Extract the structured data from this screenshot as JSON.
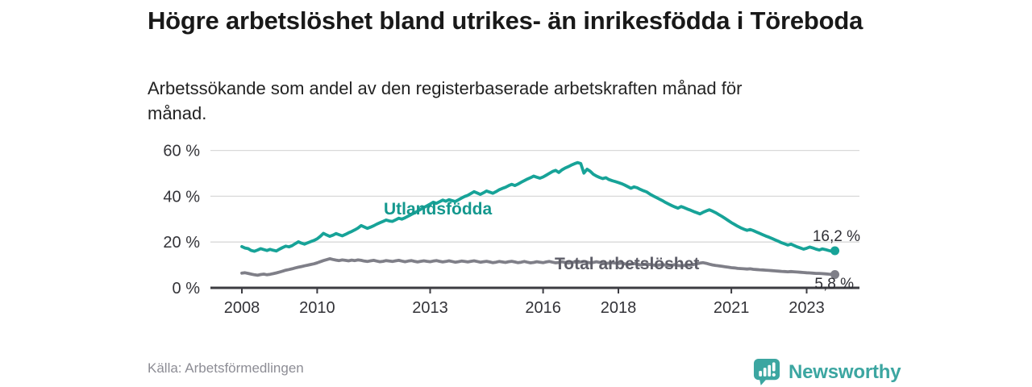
{
  "header": {
    "title": "Högre arbetslöshet bland utrikes- än inrikesfödda i Töreboda",
    "subtitle": "Arbetssökande som andel av den registerbaserade arbetskraften månad för månad."
  },
  "footer": {
    "source": "Källa: Arbetsförmedlingen",
    "brand_name": "Newsworthy",
    "brand_color": "#3CA6A1"
  },
  "chart_data": {
    "type": "line",
    "x_start_year": 2008,
    "x_interval": "monthly",
    "x_end": "2023-10",
    "ylim": [
      0,
      62
    ],
    "grid": true,
    "y_ticks": [
      {
        "value": 0,
        "label": "0 %"
      },
      {
        "value": 20,
        "label": "20 %"
      },
      {
        "value": 40,
        "label": "40 %"
      },
      {
        "value": 60,
        "label": "60 %"
      }
    ],
    "x_ticks": [
      {
        "year": 2008,
        "label": "2008"
      },
      {
        "year": 2010,
        "label": "2010"
      },
      {
        "year": 2013,
        "label": "2013"
      },
      {
        "year": 2016,
        "label": "2016"
      },
      {
        "year": 2018,
        "label": "2018"
      },
      {
        "year": 2021,
        "label": "2021"
      },
      {
        "year": 2023,
        "label": "2023"
      }
    ],
    "axis_color": "#3c3c42",
    "grid_color": "#d9d9d9",
    "tick_label_color": "#333338",
    "value_label_color": "#2e2e34",
    "series": [
      {
        "name": "Utlandsfödda",
        "color": "#17A398",
        "label_color": "#14988E",
        "end_label": "16,2 %",
        "end_value": 16.2,
        "values": [
          18.0,
          17.4,
          17.1,
          16.3,
          16.0,
          16.5,
          17.1,
          16.7,
          16.3,
          16.8,
          16.4,
          16.1,
          16.9,
          17.6,
          18.2,
          17.9,
          18.4,
          19.3,
          20.1,
          19.5,
          19.1,
          19.7,
          20.2,
          20.7,
          21.4,
          22.5,
          23.8,
          23.1,
          22.5,
          23.0,
          23.7,
          23.2,
          22.7,
          23.3,
          24.0,
          24.6,
          25.3,
          26.1,
          27.2,
          26.6,
          26.0,
          26.5,
          27.1,
          27.8,
          28.4,
          29.0,
          29.6,
          29.2,
          29.0,
          29.7,
          30.4,
          30.0,
          30.6,
          31.3,
          32.0,
          32.7,
          33.5,
          34.3,
          35.1,
          35.8,
          36.6,
          37.4,
          36.9,
          37.6,
          38.3,
          37.8,
          38.5,
          38.1,
          37.7,
          38.4,
          39.2,
          39.9,
          40.4,
          41.2,
          42.0,
          41.4,
          40.8,
          41.5,
          42.3,
          41.8,
          41.3,
          42.0,
          42.8,
          43.4,
          43.9,
          44.6,
          45.2,
          44.7,
          45.3,
          46.1,
          46.8,
          47.5,
          48.1,
          48.8,
          48.3,
          47.9,
          48.4,
          49.2,
          50.0,
          50.8,
          51.3,
          50.4,
          51.5,
          52.3,
          52.9,
          53.6,
          54.2,
          54.7,
          54.3,
          50.1,
          51.8,
          50.9,
          49.6,
          48.8,
          48.2,
          47.7,
          48.1,
          47.3,
          46.8,
          46.4,
          46.0,
          45.5,
          44.9,
          44.2,
          43.5,
          44.1,
          43.7,
          43.0,
          42.4,
          41.9,
          41.0,
          40.2,
          39.5,
          38.8,
          38.1,
          37.3,
          36.6,
          35.9,
          35.3,
          34.8,
          35.5,
          35.0,
          34.4,
          33.9,
          33.3,
          32.8,
          32.3,
          33.0,
          33.6,
          34.1,
          33.5,
          32.8,
          32.0,
          31.2,
          30.3,
          29.4,
          28.5,
          27.7,
          26.9,
          26.2,
          25.6,
          25.1,
          25.5,
          25.0,
          24.4,
          23.8,
          23.2,
          22.6,
          22.1,
          21.5,
          20.9,
          20.3,
          19.7,
          19.2,
          18.7,
          19.1,
          18.5,
          17.9,
          17.4,
          16.9,
          17.3,
          17.8,
          17.4,
          16.9,
          16.5,
          17.0,
          16.7,
          16.3,
          16.0,
          16.2
        ]
      },
      {
        "name": "Total arbetslöshet",
        "color": "#7F7F88",
        "label_color": "#5E5E68",
        "end_label": "5,8 %",
        "end_value": 5.8,
        "values": [
          6.4,
          6.6,
          6.3,
          6.0,
          5.7,
          5.5,
          5.8,
          6.0,
          5.7,
          5.9,
          6.2,
          6.5,
          6.9,
          7.3,
          7.7,
          8.0,
          8.3,
          8.7,
          9.0,
          9.3,
          9.6,
          9.9,
          10.2,
          10.5,
          10.9,
          11.4,
          11.9,
          12.3,
          12.7,
          12.4,
          12.1,
          11.9,
          12.2,
          12.0,
          11.8,
          12.1,
          11.9,
          12.2,
          12.0,
          11.7,
          11.5,
          11.8,
          12.0,
          11.7,
          11.4,
          11.6,
          11.9,
          11.7,
          11.5,
          11.8,
          12.0,
          11.7,
          11.4,
          11.7,
          11.9,
          11.6,
          11.3,
          11.6,
          11.8,
          11.6,
          11.4,
          11.7,
          11.9,
          11.6,
          11.3,
          11.5,
          11.8,
          11.5,
          11.2,
          11.4,
          11.7,
          11.5,
          11.3,
          11.6,
          11.8,
          11.5,
          11.2,
          11.4,
          11.6,
          11.3,
          11.0,
          11.2,
          11.5,
          11.3,
          11.1,
          11.4,
          11.6,
          11.3,
          11.0,
          11.2,
          11.5,
          11.2,
          10.9,
          11.1,
          11.4,
          11.2,
          11.0,
          11.3,
          11.5,
          11.2,
          10.9,
          11.1,
          11.4,
          11.1,
          10.8,
          11.0,
          11.3,
          11.1,
          11.3,
          11.5,
          11.2,
          10.9,
          11.1,
          11.4,
          11.1,
          10.8,
          10.6,
          10.8,
          11.0,
          10.8,
          10.6,
          10.8,
          10.5,
          10.2,
          10.4,
          10.6,
          10.3,
          10.0,
          10.2,
          10.4,
          10.2,
          10.0,
          9.8,
          10.0,
          10.2,
          9.9,
          9.7,
          9.9,
          10.1,
          9.8,
          9.6,
          9.8,
          10.0,
          9.9,
          10.2,
          10.5,
          10.8,
          11.0,
          10.7,
          10.3,
          10.0,
          9.8,
          9.6,
          9.4,
          9.2,
          9.0,
          8.8,
          8.7,
          8.5,
          8.4,
          8.3,
          8.2,
          8.3,
          8.1,
          8.0,
          7.9,
          7.8,
          7.7,
          7.6,
          7.5,
          7.4,
          7.3,
          7.2,
          7.1,
          7.0,
          7.1,
          7.0,
          6.9,
          6.8,
          6.7,
          6.6,
          6.5,
          6.4,
          6.3,
          6.3,
          6.2,
          6.1,
          6.0,
          5.9,
          5.8
        ]
      }
    ]
  }
}
